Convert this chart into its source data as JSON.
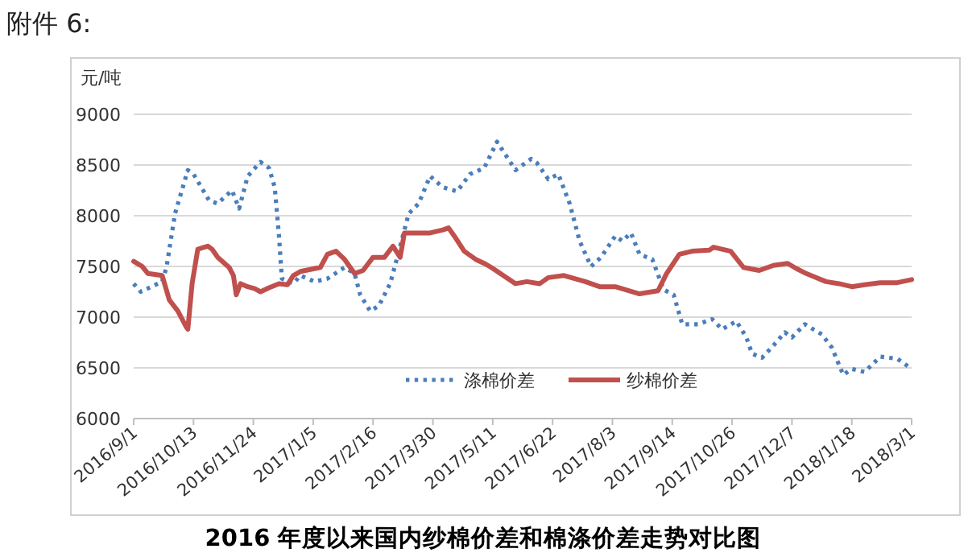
{
  "chart_data": {
    "type": "line",
    "title": "2016 年度以来国内纱棉价差和棉涤价差走势对比图",
    "ylabel": "元/吨",
    "annotations": [
      "附件 6:"
    ],
    "xlim": [
      "2016-09-01",
      "2018-03-01"
    ],
    "xticks": [
      {
        "value": "2016-09-01",
        "label": "2016/9/1"
      },
      {
        "value": "2016-10-13",
        "label": "2016/10/13"
      },
      {
        "value": "2016-11-24",
        "label": "2016/11/24"
      },
      {
        "value": "2017-01-05",
        "label": "2017/1/5"
      },
      {
        "value": "2017-02-16",
        "label": "2017/2/16"
      },
      {
        "value": "2017-03-30",
        "label": "2017/3/30"
      },
      {
        "value": "2017-05-11",
        "label": "2017/5/11"
      },
      {
        "value": "2017-06-22",
        "label": "2017/6/22"
      },
      {
        "value": "2017-08-03",
        "label": "2017/8/3"
      },
      {
        "value": "2017-09-14",
        "label": "2017/9/14"
      },
      {
        "value": "2017-10-26",
        "label": "2017/10/26"
      },
      {
        "value": "2017-12-07",
        "label": "2017/12/7"
      },
      {
        "value": "2018-01-18",
        "label": "2018/1/18"
      },
      {
        "value": "2018-03-01",
        "label": "2018/3/1"
      }
    ],
    "ylim": [
      6000,
      9000
    ],
    "yticks": [
      6000,
      6500,
      7000,
      7500,
      8000,
      8500,
      9000
    ],
    "grid": "y",
    "legend": "bottom",
    "series": [
      {
        "name": "涤棉价差",
        "color": "#4a7ebb",
        "line_style": "dotted",
        "x": [
          "2016-09-01",
          "2016-09-06",
          "2016-09-21",
          "2016-09-24",
          "2016-09-30",
          "2016-10-09",
          "2016-10-13",
          "2016-10-24",
          "2016-10-30",
          "2016-11-09",
          "2016-11-14",
          "2016-11-20",
          "2016-11-29",
          "2016-12-05",
          "2016-12-09",
          "2016-12-12",
          "2016-12-14",
          "2016-12-22",
          "2016-12-27",
          "2017-01-06",
          "2017-01-15",
          "2017-01-27",
          "2017-02-03",
          "2017-02-07",
          "2017-02-14",
          "2017-02-20",
          "2017-02-28",
          "2017-03-05",
          "2017-03-13",
          "2017-03-20",
          "2017-03-28",
          "2017-04-06",
          "2017-04-16",
          "2017-04-25",
          "2017-05-05",
          "2017-05-14",
          "2017-05-20",
          "2017-05-27",
          "2017-06-07",
          "2017-06-11",
          "2017-06-19",
          "2017-06-26",
          "2017-07-04",
          "2017-07-11",
          "2017-07-19",
          "2017-07-26",
          "2017-08-05",
          "2017-08-10",
          "2017-08-16",
          "2017-08-22",
          "2017-08-31",
          "2017-09-08",
          "2017-09-15",
          "2017-09-21",
          "2017-10-02",
          "2017-10-12",
          "2017-10-19",
          "2017-10-29",
          "2017-11-05",
          "2017-11-09",
          "2017-11-16",
          "2017-11-24",
          "2017-12-02",
          "2017-12-07",
          "2017-12-16",
          "2017-12-28",
          "2018-01-04",
          "2018-01-12",
          "2018-01-18",
          "2018-01-27",
          "2018-02-07",
          "2018-02-19",
          "2018-03-01"
        ],
        "values": [
          7330,
          7250,
          7350,
          7490,
          8020,
          8450,
          8410,
          8150,
          8120,
          8250,
          8070,
          8390,
          8530,
          8470,
          8280,
          7800,
          7380,
          7330,
          7410,
          7350,
          7380,
          7490,
          7430,
          7220,
          7060,
          7110,
          7330,
          7590,
          8020,
          8120,
          8390,
          8280,
          8240,
          8410,
          8470,
          8730,
          8600,
          8450,
          8560,
          8520,
          8360,
          8410,
          8120,
          7750,
          7500,
          7590,
          7800,
          7750,
          7830,
          7620,
          7570,
          7270,
          7220,
          6930,
          6930,
          6980,
          6880,
          6960,
          6800,
          6640,
          6600,
          6720,
          6850,
          6800,
          6930,
          6830,
          6700,
          6430,
          6490,
          6460,
          6610,
          6590,
          6490
        ]
      },
      {
        "name": "纱棉价差",
        "color": "#c0504d",
        "line_style": "solid",
        "x": [
          "2016-09-01",
          "2016-09-07",
          "2016-09-11",
          "2016-09-21",
          "2016-09-26",
          "2016-10-02",
          "2016-10-08",
          "2016-10-09",
          "2016-10-12",
          "2016-10-16",
          "2016-10-23",
          "2016-10-26",
          "2016-10-30",
          "2016-11-07",
          "2016-11-10",
          "2016-11-12",
          "2016-11-15",
          "2016-11-20",
          "2016-11-25",
          "2016-11-29",
          "2016-12-05",
          "2016-12-12",
          "2016-12-18",
          "2016-12-22",
          "2016-12-27",
          "2017-01-10",
          "2017-01-15",
          "2017-01-21",
          "2017-01-27",
          "2017-02-03",
          "2017-02-09",
          "2017-02-16",
          "2017-02-24",
          "2017-03-02",
          "2017-03-07",
          "2017-03-10",
          "2017-03-18",
          "2017-03-28",
          "2017-04-06",
          "2017-04-10",
          "2017-04-14",
          "2017-04-21",
          "2017-04-29",
          "2017-05-05",
          "2017-05-10",
          "2017-05-27",
          "2017-06-04",
          "2017-06-13",
          "2017-06-19",
          "2017-06-30",
          "2017-07-15",
          "2017-07-25",
          "2017-08-05",
          "2017-08-22",
          "2017-09-04",
          "2017-09-10",
          "2017-09-19",
          "2017-09-28",
          "2017-10-10",
          "2017-10-13",
          "2017-10-25",
          "2017-11-03",
          "2017-11-14",
          "2017-11-24",
          "2017-12-04",
          "2017-12-10",
          "2017-12-17",
          "2017-12-31",
          "2018-01-09",
          "2018-01-18",
          "2018-01-27",
          "2018-02-07",
          "2018-02-19",
          "2018-03-01"
        ],
        "values": [
          7550,
          7500,
          7430,
          7410,
          7170,
          7060,
          6900,
          6880,
          7330,
          7670,
          7700,
          7670,
          7590,
          7490,
          7410,
          7220,
          7330,
          7300,
          7280,
          7250,
          7290,
          7330,
          7320,
          7410,
          7450,
          7490,
          7620,
          7650,
          7570,
          7430,
          7460,
          7590,
          7590,
          7700,
          7590,
          7830,
          7830,
          7830,
          7860,
          7880,
          7800,
          7650,
          7570,
          7530,
          7490,
          7330,
          7350,
          7330,
          7390,
          7410,
          7350,
          7300,
          7300,
          7230,
          7260,
          7430,
          7620,
          7650,
          7660,
          7690,
          7650,
          7490,
          7460,
          7510,
          7530,
          7480,
          7430,
          7350,
          7330,
          7300,
          7320,
          7340,
          7340,
          7370
        ]
      }
    ]
  }
}
